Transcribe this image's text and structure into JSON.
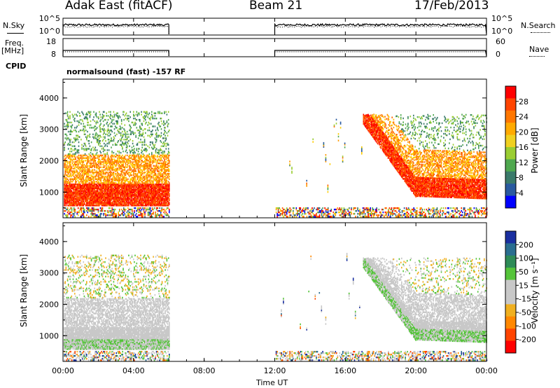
{
  "header": {
    "radar": "Adak East (fitACF)",
    "beam": "Beam 21",
    "date": "17/Feb/2013"
  },
  "strips": {
    "nsky_label": "N.Sky",
    "nsearch_label": "N.Search",
    "power_ticks_left": [
      "10^5",
      "10^0"
    ],
    "power_ticks_right": [
      "10^5",
      "10^0"
    ],
    "freq_label": "Freq.",
    "freq_unit": "[MHz]",
    "freq_ticks": [
      "18",
      "8"
    ],
    "nave_ticks": [
      "60",
      "0"
    ],
    "nave_label": "Nave",
    "cpid_label": "CPID",
    "cpid_text": "normalsound (fast) -157 RF"
  },
  "x_axis": {
    "label": "Time UT",
    "ticks": [
      "00:00",
      "04:00",
      "08:00",
      "12:00",
      "16:00",
      "20:00",
      "00:00"
    ]
  },
  "panels": [
    {
      "name": "power",
      "ylabel": "Slant Range [km]",
      "yticks": [
        "4000",
        "3000",
        "2000",
        "1000"
      ],
      "cbar_label": "Power [dB]",
      "cbar_ticks": [
        "28",
        "24",
        "20",
        "16",
        "12",
        "8",
        "4"
      ],
      "cbar_colors": [
        "#ff0000",
        "#ff4400",
        "#ff7700",
        "#ffaa00",
        "#f0d020",
        "#9acd32",
        "#4fa84f",
        "#3a7a6a",
        "#2a5aa0",
        "#0000ff"
      ]
    },
    {
      "name": "velocity",
      "ylabel": "Slant Range [km]",
      "yticks": [
        "4000",
        "3000",
        "2000",
        "1000"
      ],
      "cbar_label": "Velocity [m s⁻¹]",
      "cbar_ticks": [
        "200",
        "100",
        "50",
        "15",
        "-15",
        "-50",
        "-100",
        "-200"
      ],
      "cbar_colors": [
        "#1a2fa0",
        "#2a6e90",
        "#2e8b57",
        "#55c43a",
        "#c8c8c8",
        "#c8c8c8",
        "#f0b020",
        "#ff8800",
        "#ff4400",
        "#ff0000"
      ]
    }
  ],
  "chart_data": {
    "type": "heatmap",
    "title": "Adak East (fitACF)",
    "subtitle": "Beam 21",
    "date": "17/Feb/2013",
    "xlabel": "Time UT",
    "x_range_hours": [
      0,
      24
    ],
    "y_range_km": [
      180,
      4600
    ],
    "data_gap_hours": [
      6.0,
      12.0
    ],
    "nsky_range": [
      1,
      100000
    ],
    "freq_range_mhz": [
      8,
      18
    ],
    "freq_value_mhz": 10.5,
    "nave_range": [
      0,
      60
    ],
    "power_panel": {
      "ylabel": "Slant Range [km]",
      "colorbar": "Power [dB]",
      "colorbar_range": [
        0,
        32
      ]
    },
    "velocity_panel": {
      "ylabel": "Slant Range [km]",
      "colorbar": "Velocity [m s-1]",
      "colorbar_range": [
        -250,
        250
      ]
    }
  }
}
